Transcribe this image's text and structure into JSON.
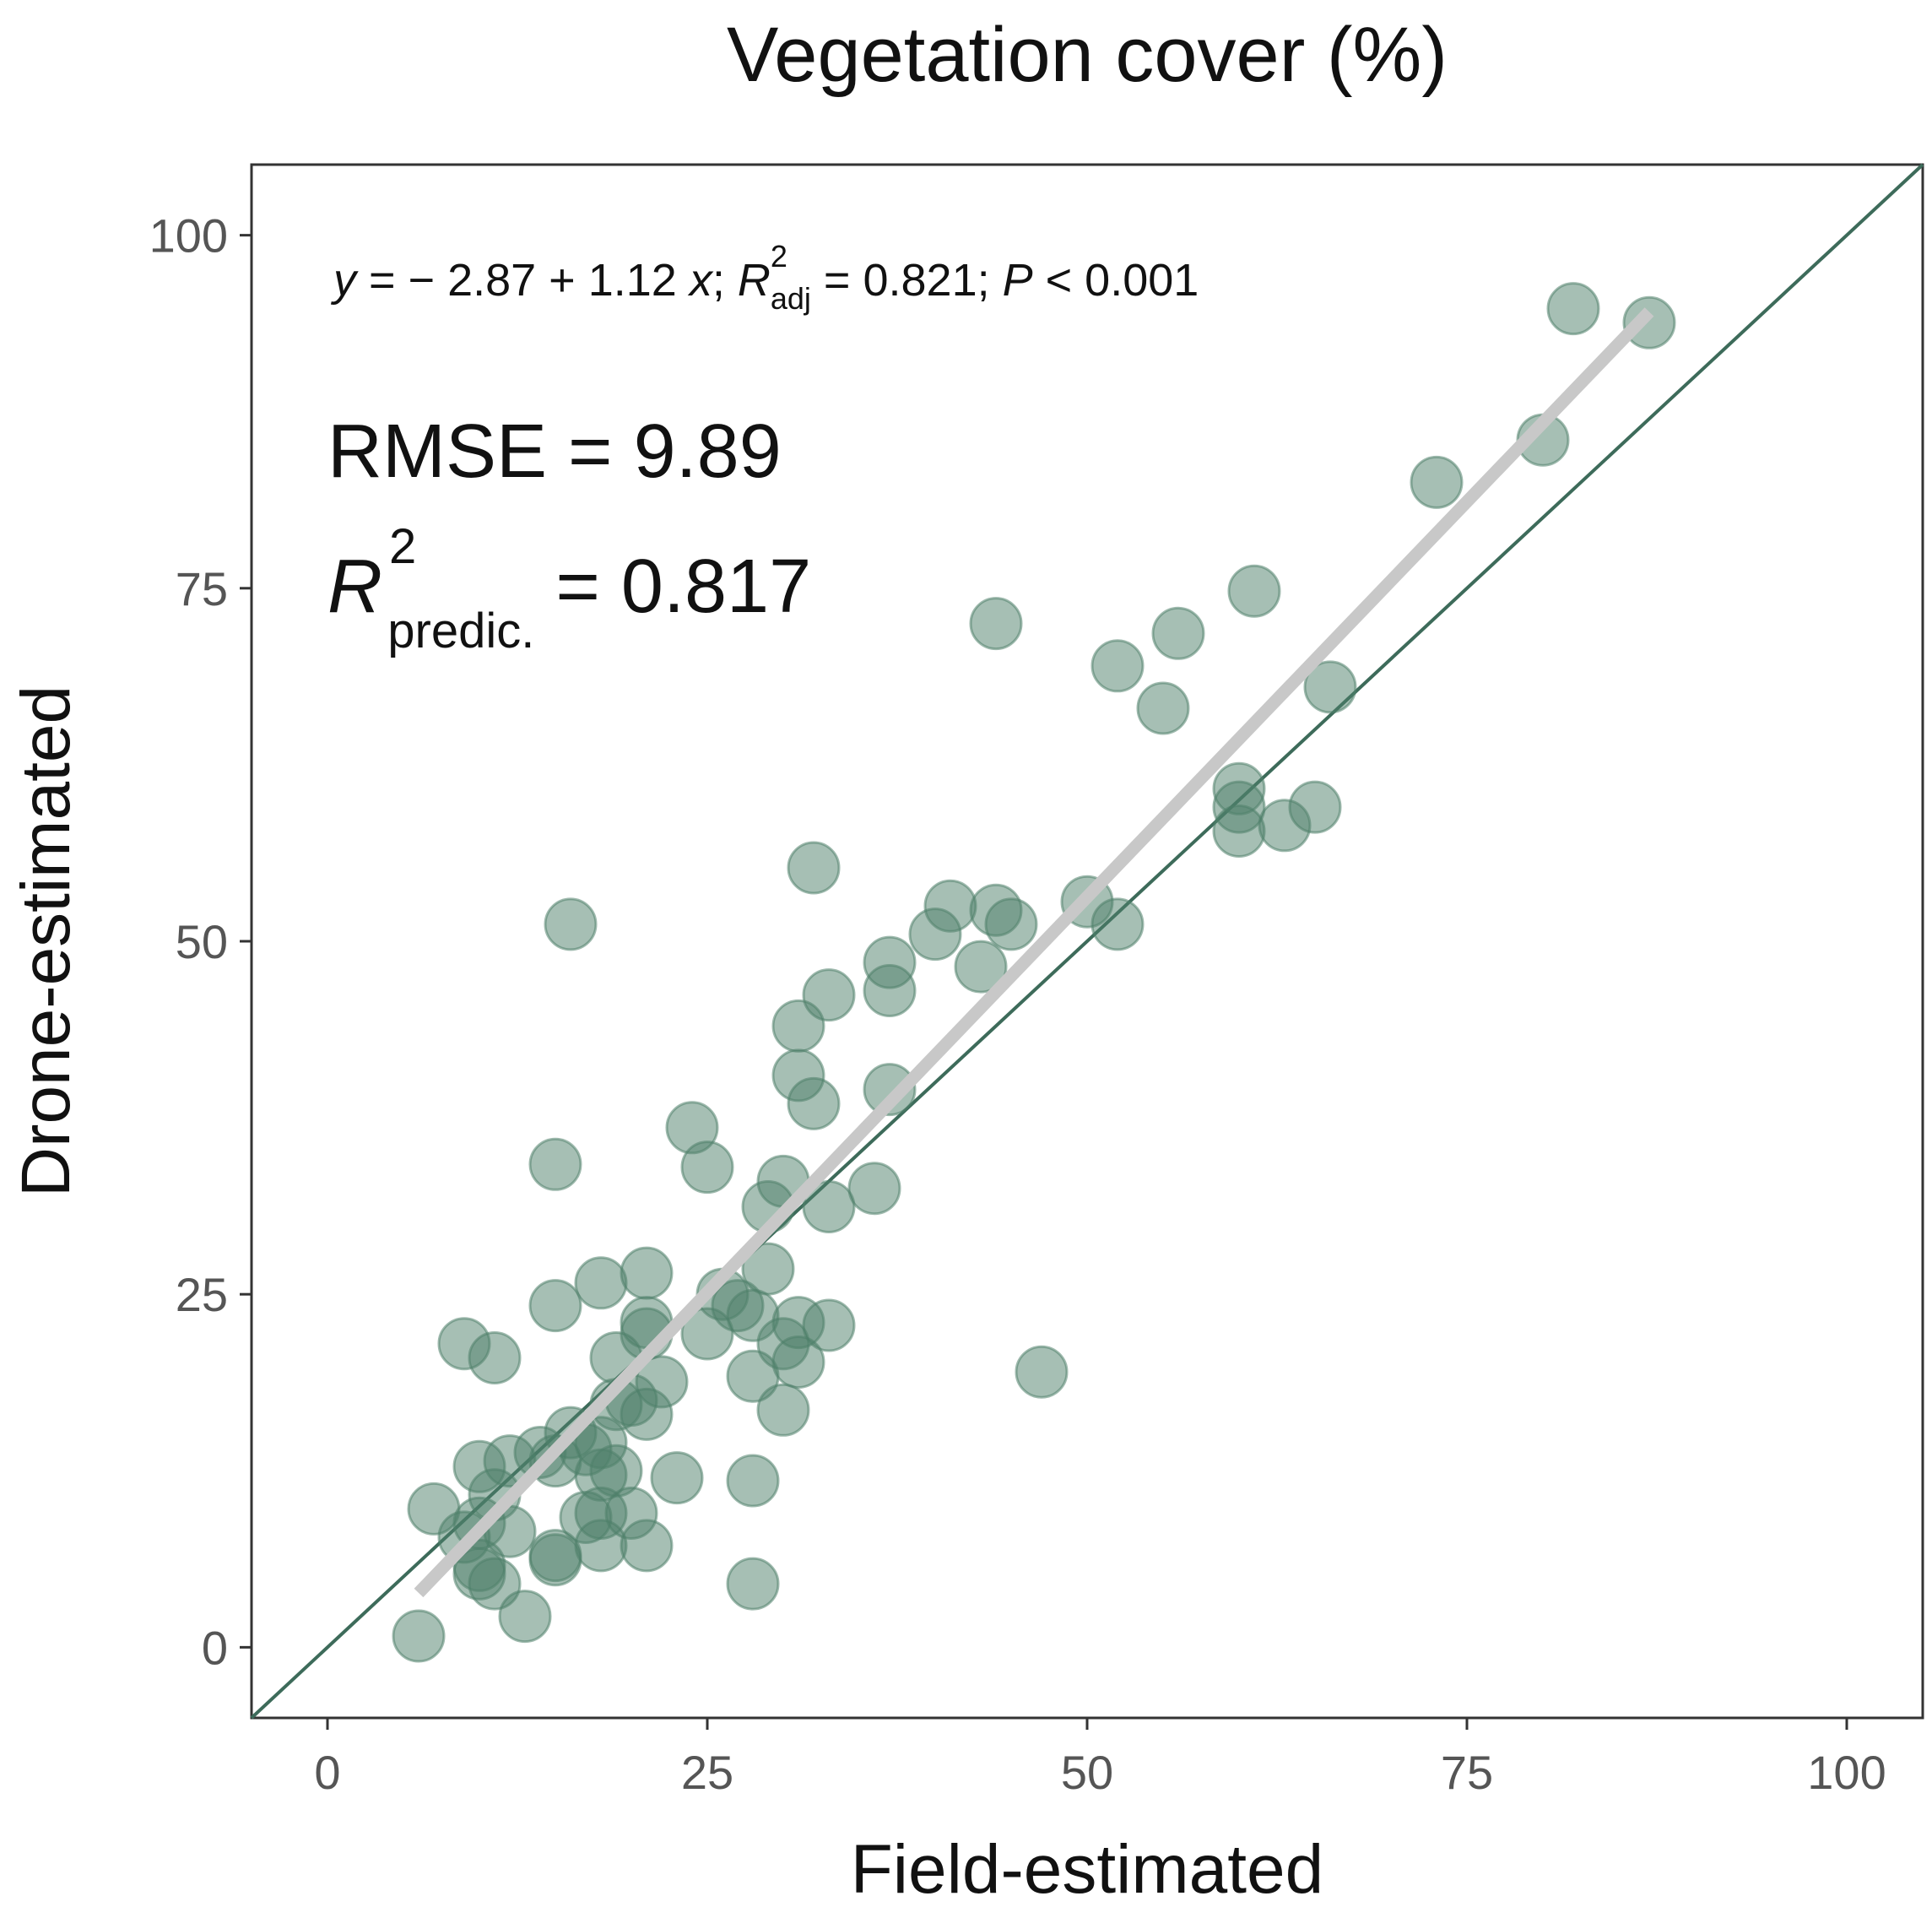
{
  "chart_data": {
    "type": "scatter",
    "title": "Vegetation cover (%)",
    "xlabel": "Field-estimated",
    "ylabel": "Drone-estimated",
    "xlim": [
      -5,
      105
    ],
    "ylim": [
      -5,
      105
    ],
    "x_ticks": [
      "0",
      "25",
      "50",
      "75",
      "100"
    ],
    "y_ticks": [
      "0",
      "25",
      "50",
      "75",
      "100"
    ],
    "point_color": "#4e7f6a",
    "identity_line_color": "#3d6b5a",
    "fit_line_color": "#c8c8c8",
    "identity_line": {
      "from": [
        -5,
        -5
      ],
      "to": [
        105,
        105
      ]
    },
    "fit_line": {
      "intercept": -2.87,
      "slope": 1.12,
      "x_range": [
        6,
        87
      ]
    },
    "annotations": {
      "equation": {
        "y": "y",
        "eq1": " = − 2.87 + 1.12 ",
        "x": "x",
        "sep1": "; ",
        "R": "R",
        "sup": "2",
        "sub": "adj",
        "eq2": " = 0.821; ",
        "P": "P",
        "eq3": " < 0.001"
      },
      "rmse": "RMSE = 9.89",
      "r2_pred": {
        "R": "R",
        "sup": "2",
        "sub": "predic.",
        "value": " = 0.817"
      }
    },
    "points": [
      [
        82,
        94.8
      ],
      [
        87,
        93.8
      ],
      [
        80,
        85.5
      ],
      [
        73,
        82.5
      ],
      [
        61,
        74.8
      ],
      [
        44,
        72.5
      ],
      [
        56,
        71.8
      ],
      [
        52,
        69.5
      ],
      [
        66,
        68
      ],
      [
        55,
        66.5
      ],
      [
        60,
        60.8
      ],
      [
        60,
        59.5
      ],
      [
        65,
        59.5
      ],
      [
        63,
        58.2
      ],
      [
        60,
        57.8
      ],
      [
        32,
        55.2
      ],
      [
        50,
        52.8
      ],
      [
        41,
        52.5
      ],
      [
        44,
        52.2
      ],
      [
        45,
        51.2
      ],
      [
        52,
        51.2
      ],
      [
        16,
        51.2
      ],
      [
        40,
        50.5
      ],
      [
        37,
        48.5
      ],
      [
        43,
        48.2
      ],
      [
        37,
        46.5
      ],
      [
        33,
        46.2
      ],
      [
        31,
        44
      ],
      [
        31,
        40.5
      ],
      [
        32,
        38.5
      ],
      [
        37,
        39.5
      ],
      [
        24,
        36.8
      ],
      [
        25,
        34
      ],
      [
        15,
        34.2
      ],
      [
        30,
        33
      ],
      [
        36,
        32.5
      ],
      [
        29,
        31.2
      ],
      [
        33,
        31.2
      ],
      [
        21,
        26.5
      ],
      [
        18,
        25.8
      ],
      [
        29,
        26.8
      ],
      [
        26,
        25
      ],
      [
        15,
        24.2
      ],
      [
        27,
        24.2
      ],
      [
        28,
        23.5
      ],
      [
        21,
        23
      ],
      [
        31,
        23
      ],
      [
        33,
        22.8
      ],
      [
        21,
        22.2
      ],
      [
        25,
        22.2
      ],
      [
        30,
        21.5
      ],
      [
        9,
        21.5
      ],
      [
        11,
        20.5
      ],
      [
        19,
        20.5
      ],
      [
        31,
        20.2
      ],
      [
        28,
        19.2
      ],
      [
        47,
        19.5
      ],
      [
        22,
        18.8
      ],
      [
        20,
        17.5
      ],
      [
        19,
        17.2
      ],
      [
        21,
        16.5
      ],
      [
        30,
        16.8
      ],
      [
        16,
        15.2
      ],
      [
        18,
        14.5
      ],
      [
        17,
        14
      ],
      [
        14,
        13.8
      ],
      [
        12,
        13.2
      ],
      [
        15,
        13.2
      ],
      [
        10,
        12.8
      ],
      [
        19,
        12.5
      ],
      [
        18,
        12.2
      ],
      [
        23,
        12
      ],
      [
        28,
        11.8
      ],
      [
        11,
        10.8
      ],
      [
        7,
        9.8
      ],
      [
        18,
        9.5
      ],
      [
        20,
        9.5
      ],
      [
        17,
        9.2
      ],
      [
        10,
        8.8
      ],
      [
        12,
        8.2
      ],
      [
        9,
        7.8
      ],
      [
        18,
        7.2
      ],
      [
        21,
        7.2
      ],
      [
        15,
        6.5
      ],
      [
        15,
        6.2
      ],
      [
        10,
        5.8
      ],
      [
        10,
        5.2
      ],
      [
        11,
        4.5
      ],
      [
        28,
        4.5
      ],
      [
        13,
        2.2
      ],
      [
        6,
        0.8
      ]
    ]
  }
}
